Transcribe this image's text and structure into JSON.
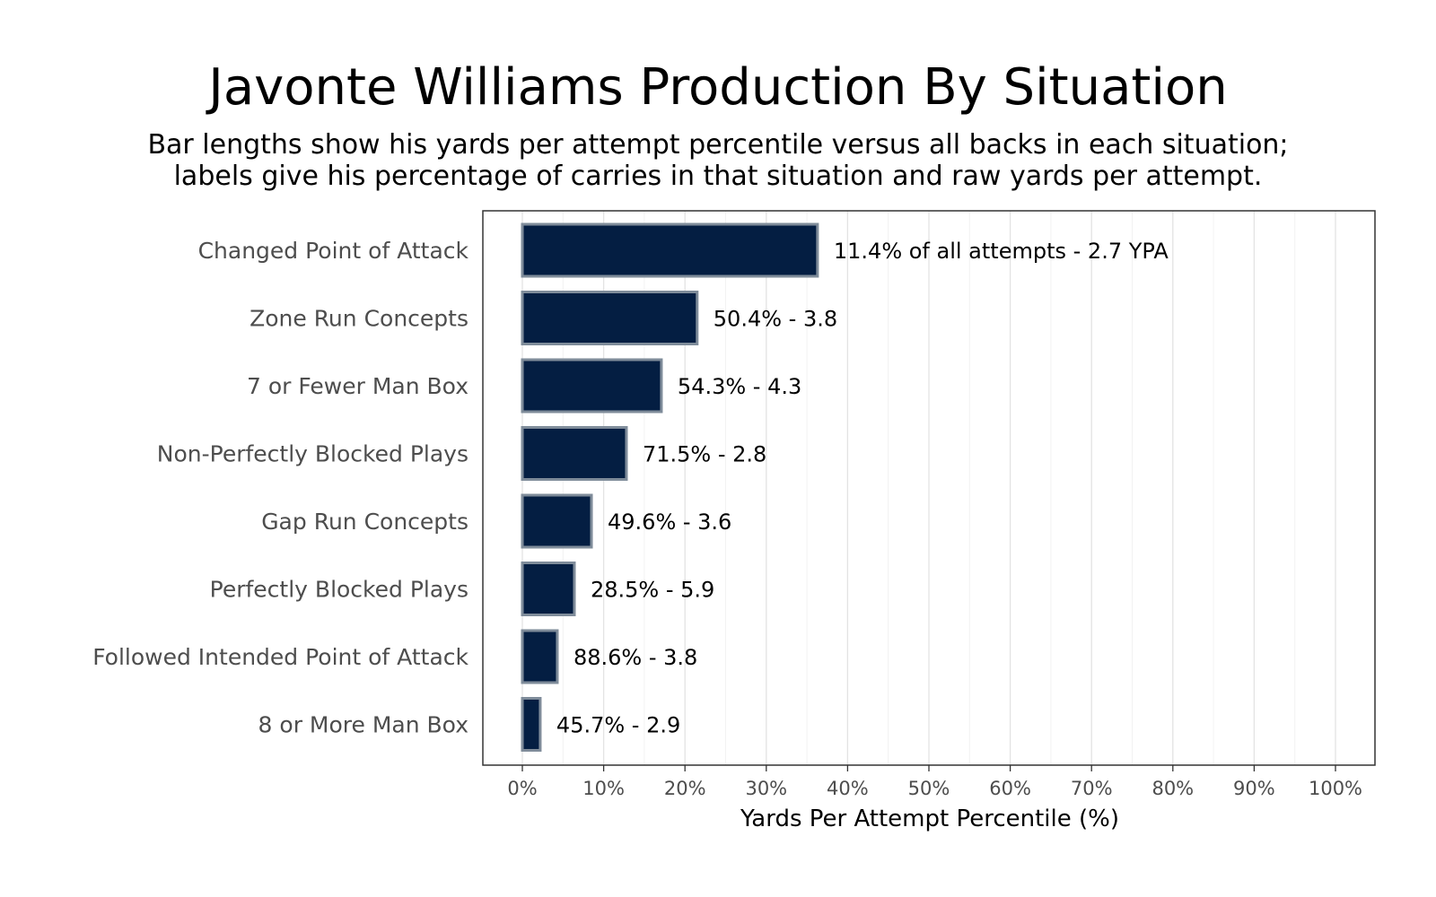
{
  "chart_data": {
    "type": "bar",
    "orientation": "horizontal",
    "title": "Javonte Williams Production By Situation",
    "subtitle": [
      "Bar lengths show his yards per attempt percentile versus all backs in each situation;",
      "labels give his percentage of carries in that situation and raw yards per attempt."
    ],
    "xlabel": "Yards Per Attempt Percentile (%)",
    "ylabel": "",
    "xlim": [
      0,
      100
    ],
    "xticks": [
      0,
      10,
      20,
      30,
      40,
      50,
      60,
      70,
      80,
      90,
      100
    ],
    "xtick_labels": [
      "0%",
      "10%",
      "20%",
      "30%",
      "40%",
      "50%",
      "60%",
      "70%",
      "80%",
      "90%",
      "100%"
    ],
    "grid": true,
    "bar_color": "#041e42",
    "bar_edge_color": "#7f8c9a",
    "categories": [
      "Changed Point of Attack",
      "Zone Run Concepts",
      "7 or Fewer Man Box",
      "Non-Perfectly Blocked Plays",
      "Gap Run Concepts",
      "Perfectly Blocked Plays",
      "Followed Intended Point of Attack",
      "8 or More Man Box"
    ],
    "values": [
      36.3,
      21.5,
      17.1,
      12.8,
      8.5,
      6.4,
      4.3,
      2.2
    ],
    "data_labels": [
      "11.4% of all attempts - 2.7 YPA",
      "50.4% - 3.8",
      "54.3% - 4.3",
      "71.5% - 2.8",
      "49.6% - 3.6",
      "28.5% - 5.9",
      "88.6% - 3.8",
      "45.7% - 2.9"
    ]
  }
}
